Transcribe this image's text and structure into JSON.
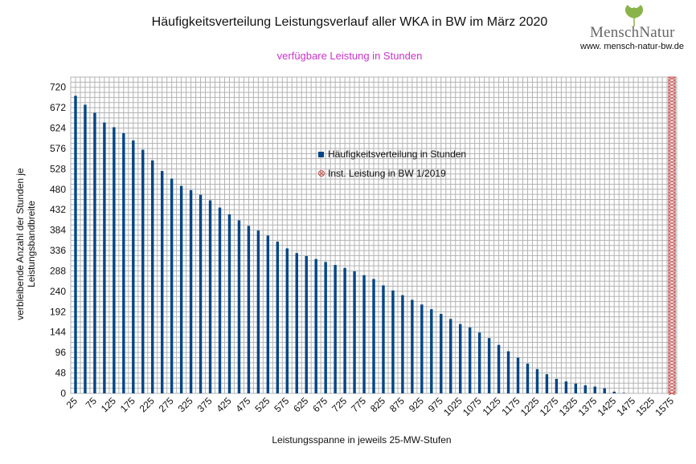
{
  "header": {
    "title": "Häufigkeitsverteilung Leistungsverlauf aller WKA in BW im März 2020",
    "subtitle": "verfügbare Leistung in Stunden"
  },
  "branding": {
    "logo_text": "MenschNatur",
    "url": "www. mensch-natur-bw.de",
    "logo_icon": "ginkgo-leaf-icon",
    "logo_color": "#8ab44a"
  },
  "chart_data": {
    "type": "bar",
    "xlabel": "Leistungsspanne in jeweils 25-MW-Stufen",
    "ylabel": "verbleibende Anzahl der Stunden je Leistungsbandbreite",
    "ylim": [
      0,
      744
    ],
    "yticks": [
      0,
      48,
      96,
      144,
      192,
      240,
      288,
      336,
      384,
      432,
      480,
      528,
      576,
      624,
      672,
      720
    ],
    "xticks": [
      25,
      75,
      125,
      175,
      225,
      275,
      325,
      375,
      425,
      475,
      525,
      575,
      625,
      675,
      725,
      775,
      825,
      875,
      925,
      975,
      1025,
      1075,
      1125,
      1175,
      1225,
      1275,
      1325,
      1375,
      1425,
      1475,
      1525,
      1575
    ],
    "grid": true,
    "legend_position": "center",
    "colors": {
      "bars": "#004586",
      "inst_line": "#c0504d"
    },
    "series": [
      {
        "name": "Häufigkeitsverteilung in Stunden",
        "x": [
          25,
          50,
          75,
          100,
          125,
          150,
          175,
          200,
          225,
          250,
          275,
          300,
          325,
          350,
          375,
          400,
          425,
          450,
          475,
          500,
          525,
          550,
          575,
          600,
          625,
          650,
          675,
          700,
          725,
          750,
          775,
          800,
          825,
          850,
          875,
          900,
          925,
          950,
          975,
          1000,
          1025,
          1050,
          1075,
          1100,
          1125,
          1150,
          1175,
          1200,
          1225,
          1250,
          1275,
          1300,
          1325,
          1350,
          1375,
          1400,
          1425,
          1450,
          1475,
          1500,
          1525,
          1550,
          1575
        ],
        "values": [
          700,
          679,
          660,
          637,
          626,
          612,
          595,
          573,
          548,
          523,
          505,
          488,
          478,
          467,
          454,
          437,
          421,
          407,
          394,
          383,
          371,
          357,
          341,
          330,
          323,
          316,
          309,
          302,
          295,
          287,
          278,
          269,
          254,
          242,
          231,
          220,
          209,
          198,
          187,
          175,
          163,
          155,
          143,
          130,
          114,
          99,
          84,
          70,
          57,
          45,
          34,
          28,
          23,
          19,
          16,
          12,
          4,
          1,
          0,
          0,
          0,
          0,
          0
        ]
      },
      {
        "name": "Inst. Leistung in BW 1/2019",
        "x_value": 1575
      }
    ]
  }
}
